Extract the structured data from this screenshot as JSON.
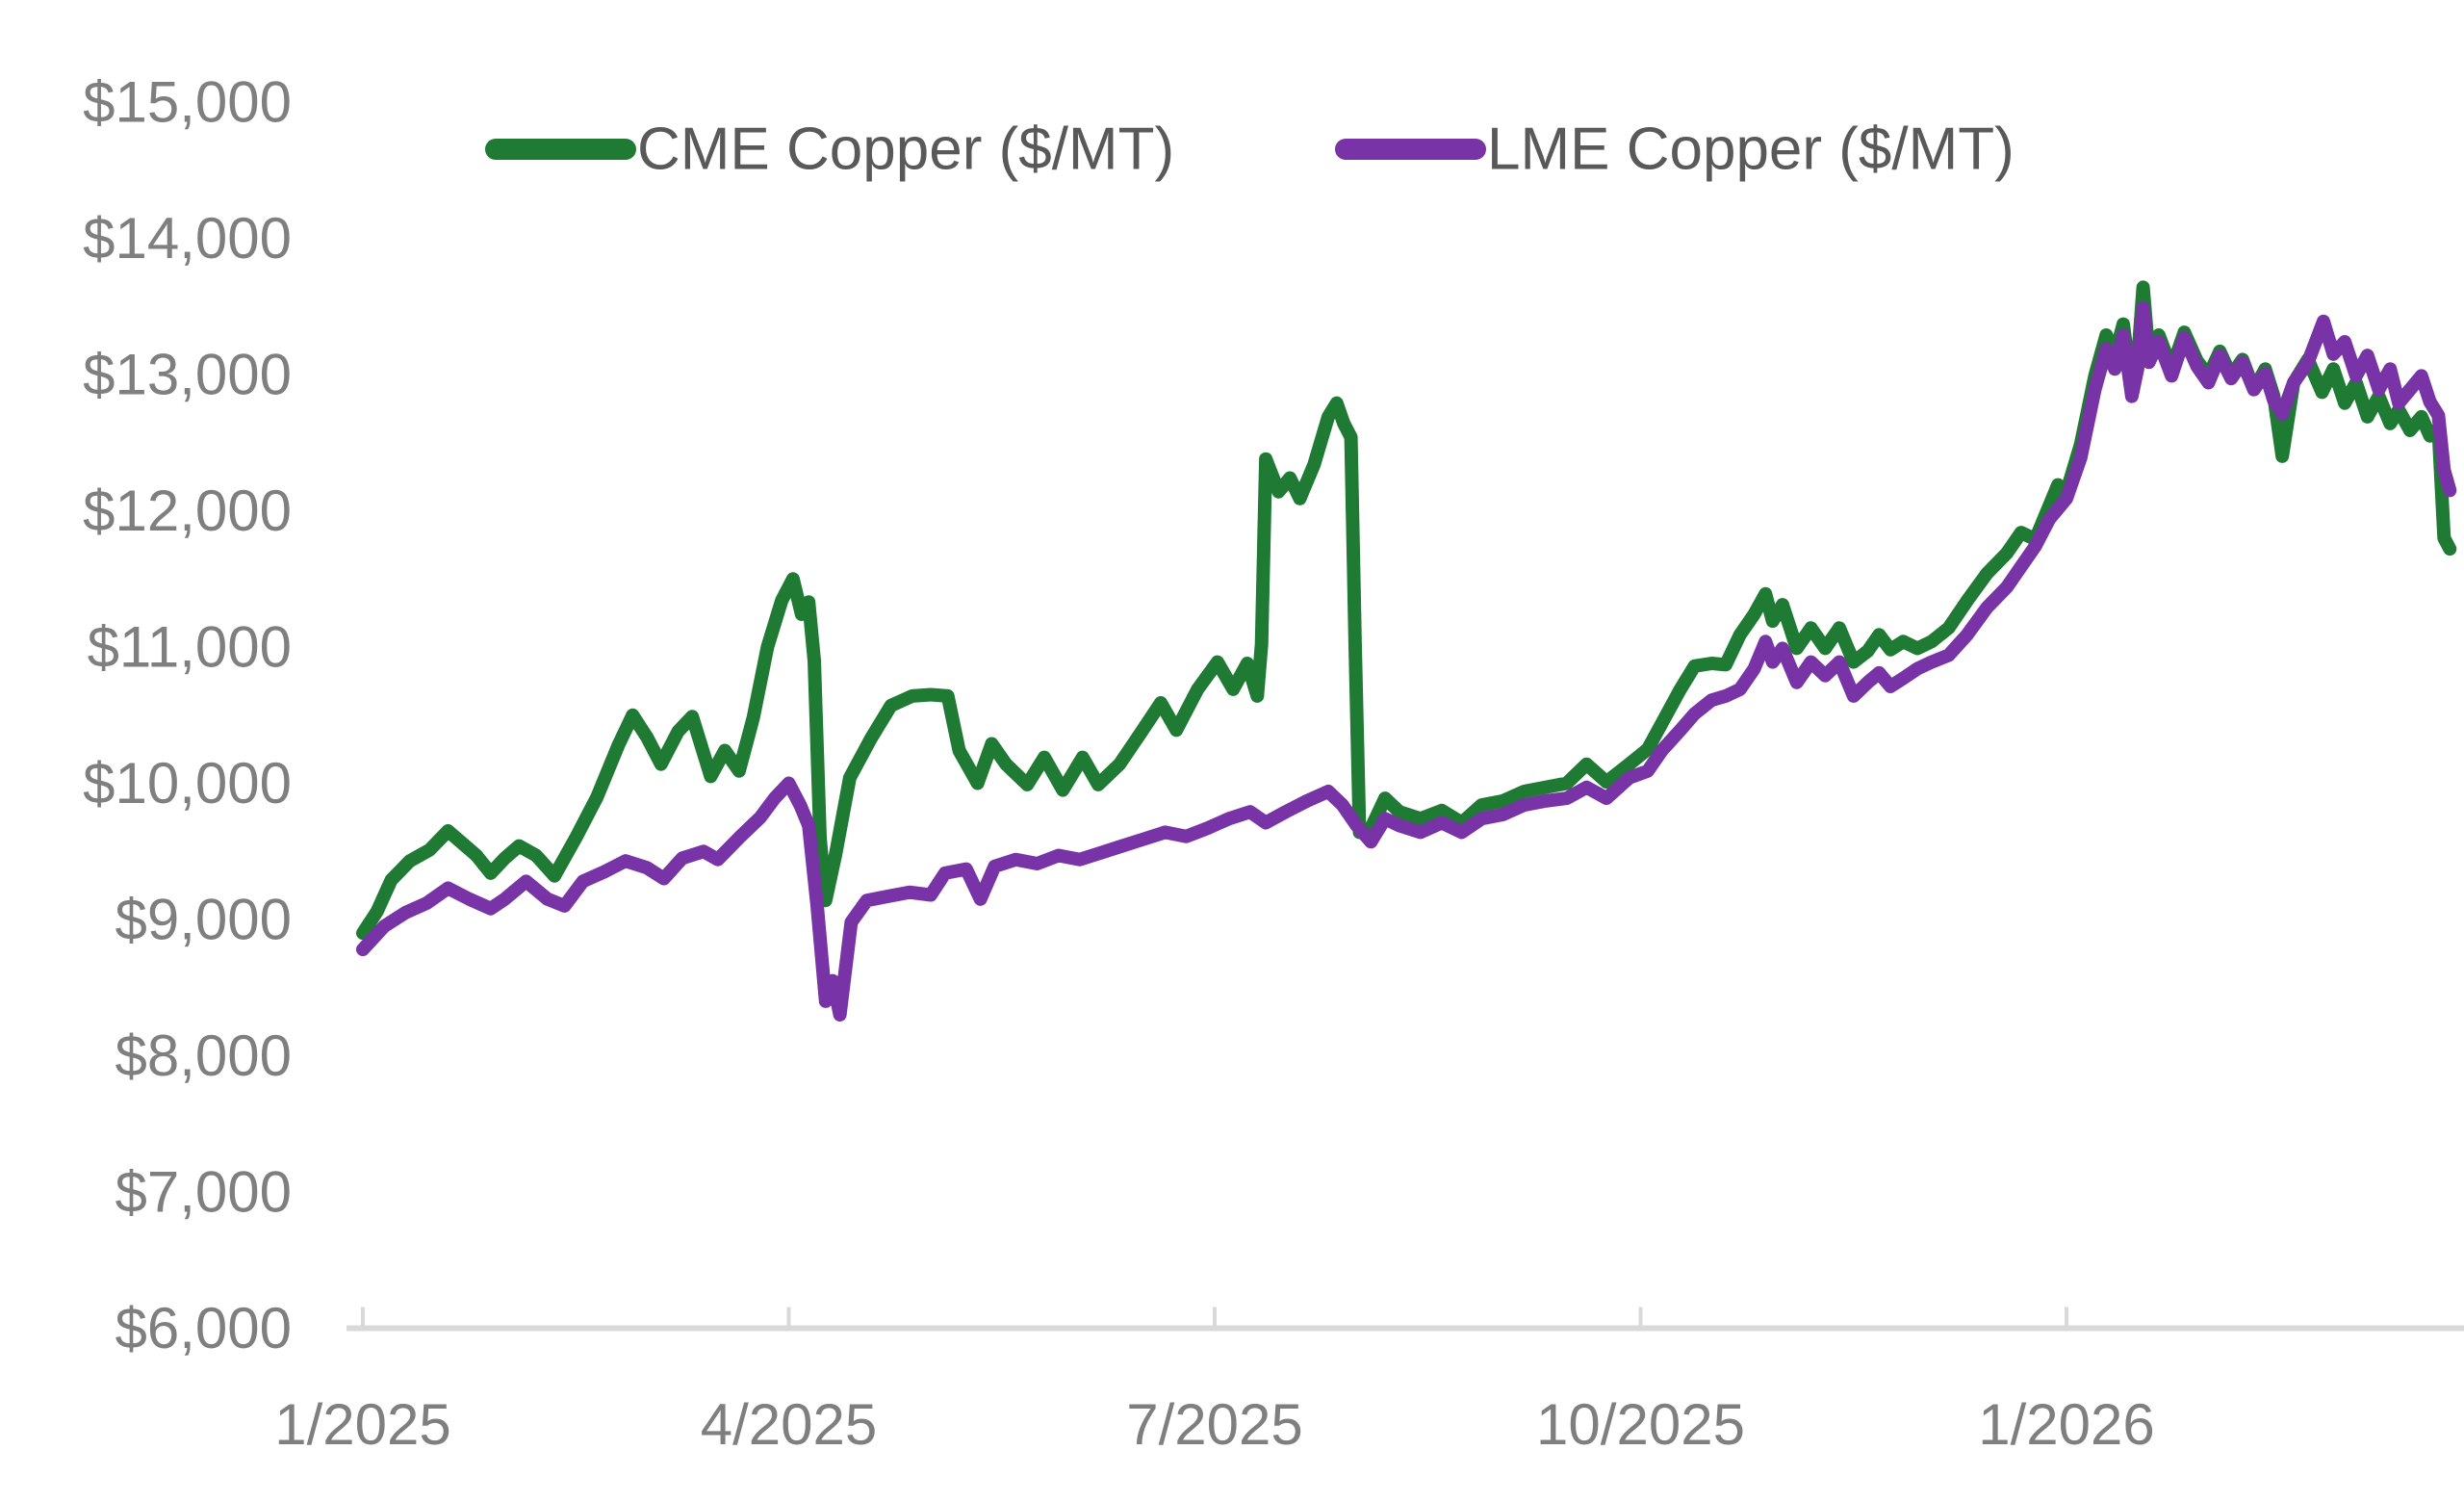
{
  "styles": {
    "background": "#FFFFFF",
    "axis_label_color": "#7F7F7F",
    "legend_text_color": "#595959",
    "axis_line_color": "#D9D9D9",
    "cme_green": "#1F7A33",
    "lme_purple": "#7833A6"
  },
  "chart_data": {
    "type": "line",
    "title": "",
    "legend_position": "top",
    "grid": "off",
    "legend": [
      {
        "label": "CME Copper ($/MT)",
        "color": "#1F7A33"
      },
      {
        "label": "LME Copper ($/MT)",
        "color": "#7833A6"
      }
    ],
    "x_axis": {
      "label": "",
      "unit": "months since Jan 2025",
      "tick_labels": [
        "1/2025",
        "4/2025",
        "7/2025",
        "10/2025",
        "1/2026"
      ],
      "tick_positions_months": [
        0,
        3,
        6,
        9,
        12
      ],
      "domain_months": [
        0,
        14.8
      ]
    },
    "y_axis": {
      "label": "",
      "min": 6000,
      "max": 15000,
      "step": 1000,
      "tick_values": [
        6000,
        7000,
        8000,
        9000,
        10000,
        11000,
        12000,
        13000,
        14000,
        15000
      ],
      "tick_labels": [
        "$6,000",
        "$7,000",
        "$8,000",
        "$9,000",
        "$10,000",
        "$11,000",
        "$12,000",
        "$13,000",
        "$14,000",
        "$15,000"
      ]
    },
    "series": [
      {
        "name": "CME Copper ($/MT)",
        "color": "#1F7A33",
        "points": [
          [
            0.0,
            8900
          ],
          [
            0.1,
            9060
          ],
          [
            0.2,
            9290
          ],
          [
            0.33,
            9430
          ],
          [
            0.47,
            9510
          ],
          [
            0.6,
            9650
          ],
          [
            0.7,
            9560
          ],
          [
            0.8,
            9470
          ],
          [
            0.9,
            9340
          ],
          [
            1.0,
            9450
          ],
          [
            1.1,
            9540
          ],
          [
            1.22,
            9470
          ],
          [
            1.35,
            9320
          ],
          [
            1.5,
            9600
          ],
          [
            1.65,
            9900
          ],
          [
            1.8,
            10280
          ],
          [
            1.9,
            10500
          ],
          [
            2.0,
            10340
          ],
          [
            2.1,
            10140
          ],
          [
            2.22,
            10380
          ],
          [
            2.32,
            10490
          ],
          [
            2.45,
            10050
          ],
          [
            2.55,
            10240
          ],
          [
            2.65,
            10090
          ],
          [
            2.75,
            10480
          ],
          [
            2.85,
            11000
          ],
          [
            2.95,
            11340
          ],
          [
            3.03,
            11500
          ],
          [
            3.09,
            11240
          ],
          [
            3.14,
            11330
          ],
          [
            3.18,
            10900
          ],
          [
            3.22,
            9600
          ],
          [
            3.26,
            9140
          ],
          [
            3.33,
            9480
          ],
          [
            3.43,
            10040
          ],
          [
            3.58,
            10330
          ],
          [
            3.72,
            10570
          ],
          [
            3.87,
            10640
          ],
          [
            4.0,
            10650
          ],
          [
            4.12,
            10640
          ],
          [
            4.2,
            10240
          ],
          [
            4.33,
            10000
          ],
          [
            4.43,
            10290
          ],
          [
            4.53,
            10140
          ],
          [
            4.68,
            9990
          ],
          [
            4.8,
            10190
          ],
          [
            4.93,
            9950
          ],
          [
            5.07,
            10190
          ],
          [
            5.18,
            9990
          ],
          [
            5.33,
            10140
          ],
          [
            5.48,
            10370
          ],
          [
            5.62,
            10590
          ],
          [
            5.73,
            10390
          ],
          [
            5.88,
            10690
          ],
          [
            6.02,
            10890
          ],
          [
            6.13,
            10690
          ],
          [
            6.23,
            10880
          ],
          [
            6.3,
            10640
          ],
          [
            6.33,
            11020
          ],
          [
            6.36,
            12380
          ],
          [
            6.45,
            12140
          ],
          [
            6.53,
            12240
          ],
          [
            6.6,
            12090
          ],
          [
            6.7,
            12340
          ],
          [
            6.8,
            12690
          ],
          [
            6.86,
            12790
          ],
          [
            6.91,
            12640
          ],
          [
            6.96,
            12540
          ],
          [
            6.99,
            11000
          ],
          [
            7.02,
            9640
          ],
          [
            7.1,
            9670
          ],
          [
            7.2,
            9890
          ],
          [
            7.3,
            9790
          ],
          [
            7.45,
            9740
          ],
          [
            7.6,
            9800
          ],
          [
            7.74,
            9710
          ],
          [
            7.88,
            9840
          ],
          [
            8.03,
            9870
          ],
          [
            8.18,
            9940
          ],
          [
            8.33,
            9970
          ],
          [
            8.48,
            10000
          ],
          [
            8.62,
            10140
          ],
          [
            8.76,
            10010
          ],
          [
            8.92,
            10140
          ],
          [
            9.05,
            10250
          ],
          [
            9.15,
            10440
          ],
          [
            9.28,
            10690
          ],
          [
            9.38,
            10860
          ],
          [
            9.5,
            10880
          ],
          [
            9.6,
            10870
          ],
          [
            9.7,
            11090
          ],
          [
            9.8,
            11240
          ],
          [
            9.88,
            11390
          ],
          [
            9.93,
            11190
          ],
          [
            10.0,
            11310
          ],
          [
            10.1,
            10990
          ],
          [
            10.2,
            11140
          ],
          [
            10.3,
            10990
          ],
          [
            10.4,
            11140
          ],
          [
            10.5,
            10890
          ],
          [
            10.6,
            10970
          ],
          [
            10.68,
            11090
          ],
          [
            10.76,
            10980
          ],
          [
            10.85,
            11040
          ],
          [
            10.95,
            10990
          ],
          [
            11.05,
            11040
          ],
          [
            11.17,
            11140
          ],
          [
            11.3,
            11340
          ],
          [
            11.44,
            11540
          ],
          [
            11.58,
            11690
          ],
          [
            11.68,
            11840
          ],
          [
            11.78,
            11790
          ],
          [
            11.88,
            12040
          ],
          [
            11.94,
            12190
          ],
          [
            12.0,
            12140
          ],
          [
            12.1,
            12490
          ],
          [
            12.2,
            12990
          ],
          [
            12.28,
            13290
          ],
          [
            12.34,
            13140
          ],
          [
            12.4,
            13370
          ],
          [
            12.46,
            12890
          ],
          [
            12.5,
            13090
          ],
          [
            12.54,
            13640
          ],
          [
            12.58,
            13140
          ],
          [
            12.65,
            13290
          ],
          [
            12.74,
            13040
          ],
          [
            12.83,
            13310
          ],
          [
            12.92,
            13100
          ],
          [
            13.0,
            12990
          ],
          [
            13.08,
            13170
          ],
          [
            13.16,
            12990
          ],
          [
            13.24,
            13110
          ],
          [
            13.32,
            12890
          ],
          [
            13.4,
            13040
          ],
          [
            13.46,
            12840
          ],
          [
            13.52,
            12400
          ],
          [
            13.6,
            12940
          ],
          [
            13.7,
            13110
          ],
          [
            13.8,
            12870
          ],
          [
            13.88,
            13040
          ],
          [
            13.96,
            12790
          ],
          [
            14.04,
            12940
          ],
          [
            14.12,
            12690
          ],
          [
            14.2,
            12840
          ],
          [
            14.28,
            12640
          ],
          [
            14.34,
            12740
          ],
          [
            14.42,
            12590
          ],
          [
            14.5,
            12690
          ],
          [
            14.56,
            12550
          ],
          [
            14.62,
            12600
          ],
          [
            14.66,
            11800
          ],
          [
            14.7,
            11720
          ]
        ]
      },
      {
        "name": "LME Copper ($/MT)",
        "color": "#7833A6",
        "points": [
          [
            0.0,
            8780
          ],
          [
            0.15,
            8950
          ],
          [
            0.3,
            9050
          ],
          [
            0.45,
            9120
          ],
          [
            0.6,
            9230
          ],
          [
            0.75,
            9150
          ],
          [
            0.9,
            9080
          ],
          [
            1.0,
            9150
          ],
          [
            1.15,
            9280
          ],
          [
            1.3,
            9150
          ],
          [
            1.42,
            9100
          ],
          [
            1.55,
            9280
          ],
          [
            1.7,
            9350
          ],
          [
            1.85,
            9430
          ],
          [
            2.0,
            9380
          ],
          [
            2.12,
            9300
          ],
          [
            2.25,
            9450
          ],
          [
            2.4,
            9500
          ],
          [
            2.5,
            9440
          ],
          [
            2.65,
            9600
          ],
          [
            2.8,
            9750
          ],
          [
            2.9,
            9890
          ],
          [
            3.0,
            10000
          ],
          [
            3.08,
            9840
          ],
          [
            3.14,
            9690
          ],
          [
            3.2,
            9100
          ],
          [
            3.26,
            8400
          ],
          [
            3.31,
            8550
          ],
          [
            3.36,
            8300
          ],
          [
            3.44,
            8980
          ],
          [
            3.55,
            9140
          ],
          [
            3.7,
            9170
          ],
          [
            3.85,
            9200
          ],
          [
            4.0,
            9180
          ],
          [
            4.1,
            9340
          ],
          [
            4.25,
            9370
          ],
          [
            4.35,
            9150
          ],
          [
            4.45,
            9390
          ],
          [
            4.6,
            9440
          ],
          [
            4.75,
            9410
          ],
          [
            4.9,
            9470
          ],
          [
            5.05,
            9440
          ],
          [
            5.2,
            9490
          ],
          [
            5.35,
            9540
          ],
          [
            5.5,
            9590
          ],
          [
            5.65,
            9640
          ],
          [
            5.8,
            9610
          ],
          [
            5.95,
            9670
          ],
          [
            6.1,
            9740
          ],
          [
            6.25,
            9790
          ],
          [
            6.36,
            9710
          ],
          [
            6.5,
            9790
          ],
          [
            6.65,
            9870
          ],
          [
            6.8,
            9940
          ],
          [
            6.9,
            9840
          ],
          [
            7.0,
            9690
          ],
          [
            7.1,
            9570
          ],
          [
            7.2,
            9740
          ],
          [
            7.3,
            9690
          ],
          [
            7.45,
            9640
          ],
          [
            7.6,
            9710
          ],
          [
            7.74,
            9640
          ],
          [
            7.88,
            9740
          ],
          [
            8.03,
            9770
          ],
          [
            8.18,
            9840
          ],
          [
            8.33,
            9870
          ],
          [
            8.48,
            9890
          ],
          [
            8.62,
            9970
          ],
          [
            8.76,
            9890
          ],
          [
            8.92,
            10040
          ],
          [
            9.05,
            10090
          ],
          [
            9.15,
            10240
          ],
          [
            9.28,
            10390
          ],
          [
            9.38,
            10510
          ],
          [
            9.5,
            10610
          ],
          [
            9.6,
            10640
          ],
          [
            9.7,
            10690
          ],
          [
            9.8,
            10840
          ],
          [
            9.88,
            11040
          ],
          [
            9.93,
            10890
          ],
          [
            10.0,
            10990
          ],
          [
            10.1,
            10740
          ],
          [
            10.2,
            10890
          ],
          [
            10.3,
            10790
          ],
          [
            10.4,
            10890
          ],
          [
            10.5,
            10640
          ],
          [
            10.6,
            10740
          ],
          [
            10.68,
            10810
          ],
          [
            10.76,
            10710
          ],
          [
            10.85,
            10770
          ],
          [
            10.95,
            10840
          ],
          [
            11.05,
            10890
          ],
          [
            11.17,
            10940
          ],
          [
            11.3,
            11090
          ],
          [
            11.44,
            11290
          ],
          [
            11.58,
            11440
          ],
          [
            11.68,
            11590
          ],
          [
            11.78,
            11740
          ],
          [
            11.88,
            11940
          ],
          [
            12.0,
            12090
          ],
          [
            12.1,
            12390
          ],
          [
            12.2,
            12890
          ],
          [
            12.28,
            13190
          ],
          [
            12.34,
            13040
          ],
          [
            12.4,
            13290
          ],
          [
            12.46,
            12840
          ],
          [
            12.5,
            13040
          ],
          [
            12.54,
            13490
          ],
          [
            12.58,
            13090
          ],
          [
            12.65,
            13240
          ],
          [
            12.74,
            12990
          ],
          [
            12.83,
            13270
          ],
          [
            12.92,
            13060
          ],
          [
            13.0,
            12940
          ],
          [
            13.08,
            13140
          ],
          [
            13.16,
            12970
          ],
          [
            13.24,
            13090
          ],
          [
            13.32,
            12890
          ],
          [
            13.4,
            13010
          ],
          [
            13.46,
            12810
          ],
          [
            13.52,
            12710
          ],
          [
            13.6,
            12940
          ],
          [
            13.7,
            13090
          ],
          [
            13.81,
            13390
          ],
          [
            13.88,
            13150
          ],
          [
            13.96,
            13240
          ],
          [
            14.04,
            12990
          ],
          [
            14.12,
            13140
          ],
          [
            14.2,
            12890
          ],
          [
            14.28,
            13040
          ],
          [
            14.34,
            12790
          ],
          [
            14.42,
            12890
          ],
          [
            14.5,
            12990
          ],
          [
            14.56,
            12800
          ],
          [
            14.62,
            12700
          ],
          [
            14.66,
            12300
          ],
          [
            14.7,
            12150
          ]
        ]
      }
    ]
  }
}
